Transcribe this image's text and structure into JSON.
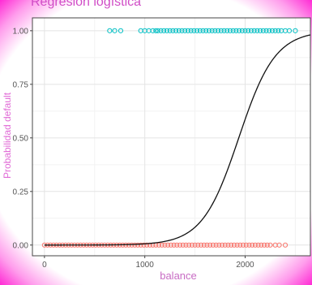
{
  "chart_data": {
    "type": "scatter",
    "title": "Regresión logística",
    "xlabel": "balance",
    "ylabel": "Probabilidad default",
    "xlim": [
      -120,
      2650
    ],
    "ylim": [
      -0.05,
      1.06
    ],
    "x_ticks": [
      0,
      1000,
      2000
    ],
    "x_tick_labels": [
      "0",
      "1000",
      "2000"
    ],
    "y_ticks": [
      0.0,
      0.25,
      0.5,
      0.75,
      1.0
    ],
    "y_tick_labels": [
      "0.00",
      "0.25",
      "0.50",
      "0.75",
      "1.00"
    ],
    "grid": true,
    "legend": "none",
    "series": [
      {
        "color": "#f8766d",
        "y": 0,
        "x": [
          0,
          30,
          60,
          90,
          120,
          150,
          180,
          210,
          240,
          270,
          300,
          330,
          360,
          390,
          420,
          450,
          480,
          510,
          540,
          570,
          600,
          630,
          660,
          690,
          720,
          750,
          780,
          810,
          840,
          870,
          900,
          930,
          960,
          990,
          1020,
          1050,
          1080,
          1110,
          1140,
          1170,
          1200,
          1230,
          1260,
          1290,
          1320,
          1350,
          1380,
          1410,
          1440,
          1470,
          1500,
          1530,
          1560,
          1590,
          1620,
          1650,
          1680,
          1710,
          1740,
          1770,
          1800,
          1830,
          1860,
          1890,
          1920,
          1950,
          1980,
          2010,
          2040,
          2070,
          2100,
          2130,
          2160,
          2190,
          2220,
          2250,
          2300,
          2340,
          2400
        ]
      },
      {
        "color": "#00bfc4",
        "y": 1,
        "x": [
          650,
          700,
          760,
          960,
          1000,
          1040,
          1080,
          1110,
          1130,
          1160,
          1190,
          1220,
          1250,
          1280,
          1310,
          1340,
          1370,
          1400,
          1430,
          1460,
          1490,
          1520,
          1550,
          1580,
          1610,
          1640,
          1670,
          1700,
          1730,
          1760,
          1790,
          1820,
          1850,
          1880,
          1910,
          1940,
          1970,
          2000,
          2030,
          2060,
          2090,
          2120,
          2150,
          2180,
          2210,
          2240,
          2270,
          2300,
          2330,
          2360,
          2400,
          2440,
          2500
        ]
      }
    ],
    "fit_curve": {
      "type": "logistic",
      "intercept": -10.65,
      "slope": 0.0055,
      "color": "#111111"
    }
  }
}
